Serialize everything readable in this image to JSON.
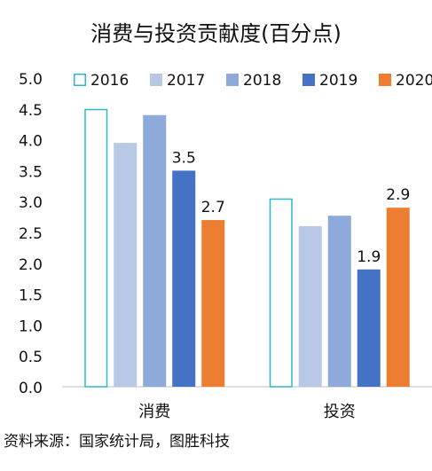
{
  "chart_data": {
    "type": "bar",
    "title": "消费与投资贡献度(百分点)",
    "categories": [
      "消费",
      "投资"
    ],
    "series": [
      {
        "name": "2016",
        "values": [
          4.5,
          3.05
        ],
        "color": "#ffffff",
        "stroke": "#2eb8c9",
        "labels": [
          "",
          ""
        ]
      },
      {
        "name": "2017",
        "values": [
          3.95,
          2.6
        ],
        "color": "#b7c9e6",
        "labels": [
          "",
          ""
        ]
      },
      {
        "name": "2018",
        "values": [
          4.4,
          2.77
        ],
        "color": "#8eaadb",
        "labels": [
          "",
          ""
        ]
      },
      {
        "name": "2019",
        "values": [
          3.5,
          1.9
        ],
        "color": "#4472c4",
        "labels": [
          "3.5",
          "1.9"
        ]
      },
      {
        "name": "2020",
        "values": [
          2.7,
          2.9
        ],
        "color": "#ed7d31",
        "labels": [
          "2.7",
          "2.9"
        ]
      }
    ],
    "ylim": [
      0,
      5
    ],
    "yticks": [
      "0.0",
      "0.5",
      "1.0",
      "1.5",
      "2.0",
      "2.5",
      "3.0",
      "3.5",
      "4.0",
      "4.5",
      "5.0"
    ],
    "xlabel": "",
    "ylabel": "",
    "grid": false,
    "legend_position": "top"
  },
  "source": "资料来源：国家统计局，图胜科技"
}
